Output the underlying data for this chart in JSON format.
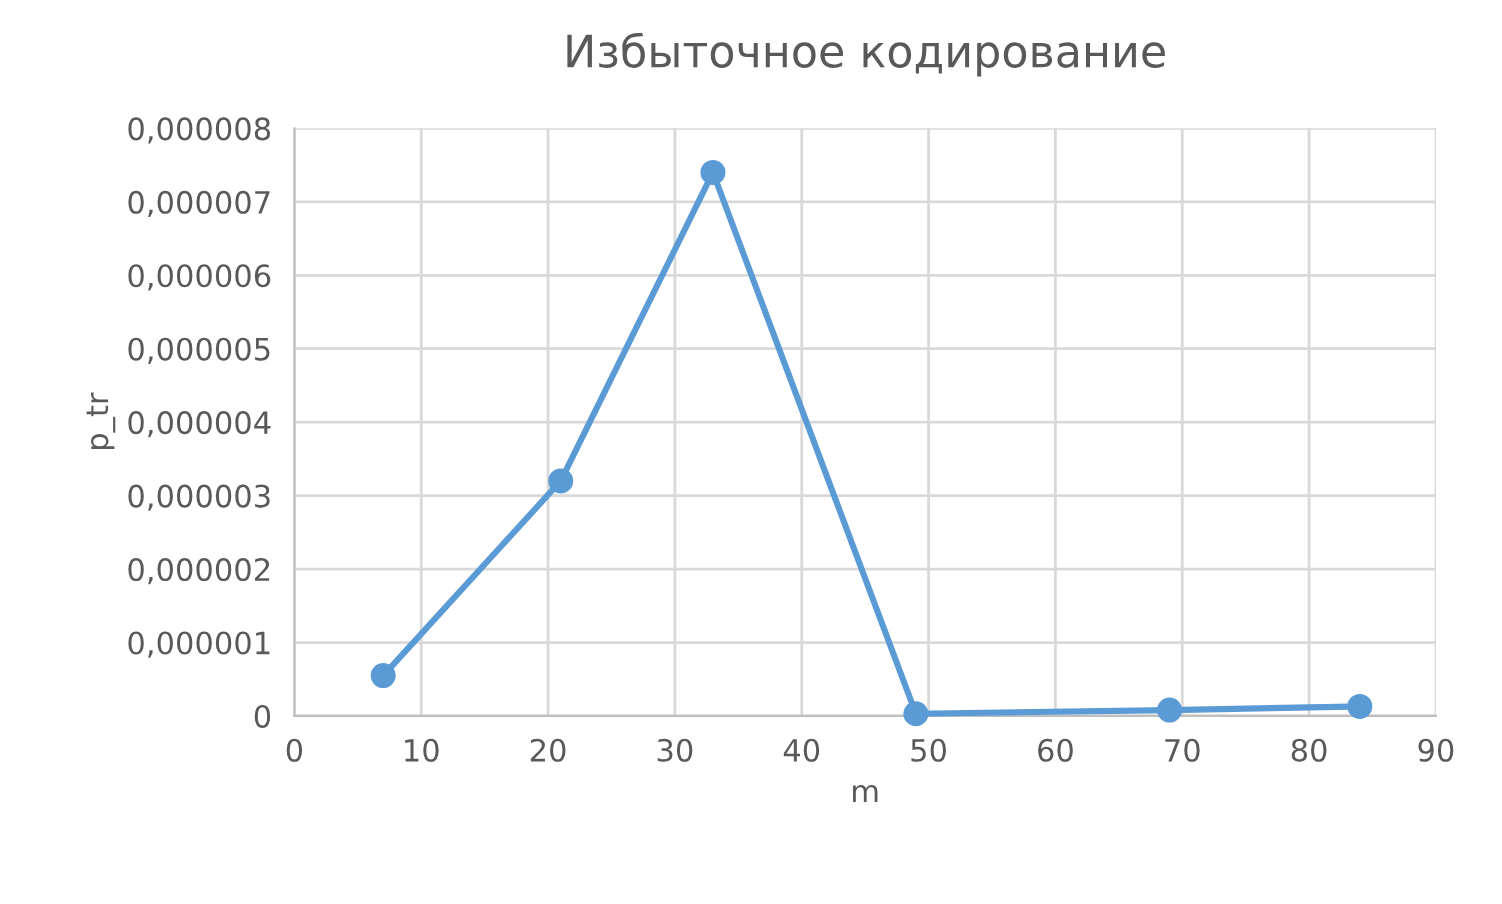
{
  "chart_data": {
    "type": "line",
    "title": "Избыточное кодирование",
    "xlabel": "m",
    "ylabel": "p_tr",
    "x": [
      7,
      21,
      33,
      49,
      69,
      84
    ],
    "series": [
      {
        "color": "#5b9bd5",
        "values": [
          5.5e-07,
          3.2e-06,
          7.4e-06,
          3e-08,
          8e-08,
          1.3e-07
        ]
      }
    ],
    "xlim": [
      0,
      90
    ],
    "xticks": [
      0,
      10,
      20,
      30,
      40,
      50,
      60,
      70,
      80,
      90
    ],
    "ylim": [
      0,
      8e-06
    ],
    "yticks": [
      {
        "value": 0,
        "label": "0"
      },
      {
        "value": 1e-06,
        "label": "0,000001"
      },
      {
        "value": 2e-06,
        "label": "0,000002"
      },
      {
        "value": 3e-06,
        "label": "0,000003"
      },
      {
        "value": 4e-06,
        "label": "0,000004"
      },
      {
        "value": 5e-06,
        "label": "0,000005"
      },
      {
        "value": 6e-06,
        "label": "0,000006"
      },
      {
        "value": 7e-06,
        "label": "0,000007"
      },
      {
        "value": 8e-06,
        "label": "0,000008"
      }
    ],
    "grid": true,
    "marker": "circle",
    "line_style": "solid"
  }
}
